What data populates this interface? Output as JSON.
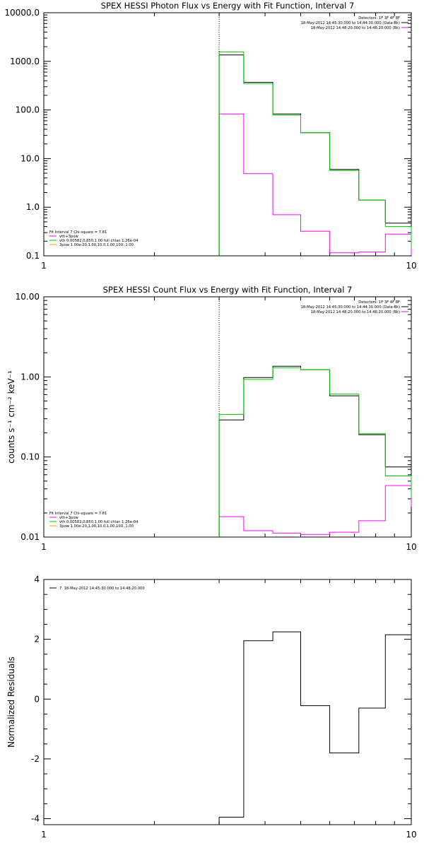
{
  "colors": {
    "total": "#000000",
    "thermal": "#00c800",
    "bk": "#ff00ff",
    "vline": "#000000",
    "orange": "#f0a000"
  },
  "chart_data": [
    {
      "type": "line",
      "title": "SPEX HESSI Photon Flux vs Energy with Fit Function, Interval 7",
      "xlabel": "",
      "ylabel": "",
      "xscale": "log",
      "yscale": "log",
      "xlim": [
        1,
        10
      ],
      "ylim": [
        0.1,
        10000
      ],
      "x_tick_labels": [
        "1",
        "10"
      ],
      "y_tick_labels": [
        "10000.0",
        "1000.0",
        "100.0",
        "10.0",
        "1.0",
        "0.1"
      ],
      "vline_x": 3.0,
      "edges": [
        3.0,
        3.5,
        4.2,
        5.0,
        6.0,
        7.2,
        8.5,
        10.0
      ],
      "series": [
        {
          "key": "total",
          "values": [
            1350,
            370,
            83,
            34,
            6.0,
            1.4,
            0.47
          ]
        },
        {
          "key": "thermal",
          "values": [
            1560,
            350,
            78,
            34,
            5.7,
            1.4,
            0.4
          ]
        },
        {
          "key": "bk",
          "values": [
            83,
            4.9,
            0.7,
            0.32,
            0.115,
            0.12,
            0.28
          ]
        }
      ],
      "legend_right": {
        "header": "Detectors: 1F 3F 4F 8F",
        "entries": [
          {
            "text": "18-May-2012 14:45:30.000 to 14:44:30.000 (Data-Bk)",
            "color": "total"
          },
          {
            "text": "18-May-2012 14:48:20.000 to 14:48:20.000 (Bk)",
            "color": "bk"
          }
        ]
      },
      "legend_left": {
        "header": "Fit Interval 7   Chi-square = 7.81",
        "entries": [
          {
            "text": "vth+3pow",
            "color": "bk"
          },
          {
            "text": "vth 0.00582,0.850,1.00   full chian 1.26e-04",
            "color": "thermal"
          },
          {
            "text": "3pow 1.00e-20,1.00,10.0,1.00,100.,1.00",
            "color": "orange"
          }
        ]
      }
    },
    {
      "type": "line",
      "title": "SPEX HESSI Count Flux vs Energy with Fit Function, Interval 7",
      "xlabel": "",
      "ylabel": "counts s⁻¹ cm⁻² keV⁻¹",
      "xscale": "log",
      "yscale": "log",
      "xlim": [
        1,
        10
      ],
      "ylim": [
        0.01,
        10
      ],
      "x_tick_labels": [
        "1",
        "10"
      ],
      "y_tick_labels": [
        "10.00",
        "1.00",
        "0.10",
        "0.01"
      ],
      "vline_x": 3.0,
      "edges": [
        3.0,
        3.5,
        4.2,
        5.0,
        6.0,
        7.2,
        8.5,
        10.0
      ],
      "series": [
        {
          "key": "total",
          "values": [
            0.29,
            0.98,
            1.36,
            1.23,
            0.58,
            0.19,
            0.075
          ]
        },
        {
          "key": "thermal",
          "values": [
            0.34,
            0.93,
            1.3,
            1.23,
            0.61,
            0.195,
            0.058
          ]
        },
        {
          "key": "bk",
          "values": [
            0.018,
            0.012,
            0.0112,
            0.0108,
            0.0115,
            0.016,
            0.044
          ]
        }
      ],
      "legend_right": {
        "header": "Detectors: 1F 3F 4F 8F",
        "entries": [
          {
            "text": "18-May-2012 14:45:30.000 to 14:44:30.000 (Data-Bk)",
            "color": "total"
          },
          {
            "text": "18-May-2012 14:48:20.000 to 14:48:20.000 (Bk)",
            "color": "bk"
          }
        ]
      },
      "legend_left": {
        "header": "Fit Interval 7   Chi-square = 7.81",
        "entries": [
          {
            "text": "vth+3pow",
            "color": "bk"
          },
          {
            "text": "vth 0.00582,0.850,1.00   full chian 1.26e-04",
            "color": "thermal"
          },
          {
            "text": "3pow 1.00e-20,1.00,10.0,1.00,100.,1.00",
            "color": "orange"
          }
        ]
      }
    },
    {
      "type": "line",
      "title": "",
      "xlabel": "",
      "ylabel": "Normalized Residuals",
      "xscale": "log",
      "yscale": "linear",
      "xlim": [
        1,
        10
      ],
      "ylim": [
        -4.2,
        4
      ],
      "x_tick_labels": [
        "1",
        "10"
      ],
      "y_tick_labels": [
        "4",
        "2",
        "0",
        "-2",
        "-4"
      ],
      "edges": [
        3.0,
        3.5,
        4.2,
        5.0,
        6.0,
        7.2,
        8.5,
        10.0
      ],
      "series": [
        {
          "key": "total",
          "values": [
            -3.95,
            1.95,
            2.25,
            -0.22,
            -1.8,
            -0.3,
            2.15
          ]
        }
      ],
      "legend_left": {
        "header": "",
        "entries": [
          {
            "text": "7. 18-May-2012 14:45:30.000 to 14:48:20.000",
            "color": "total"
          }
        ]
      }
    }
  ]
}
